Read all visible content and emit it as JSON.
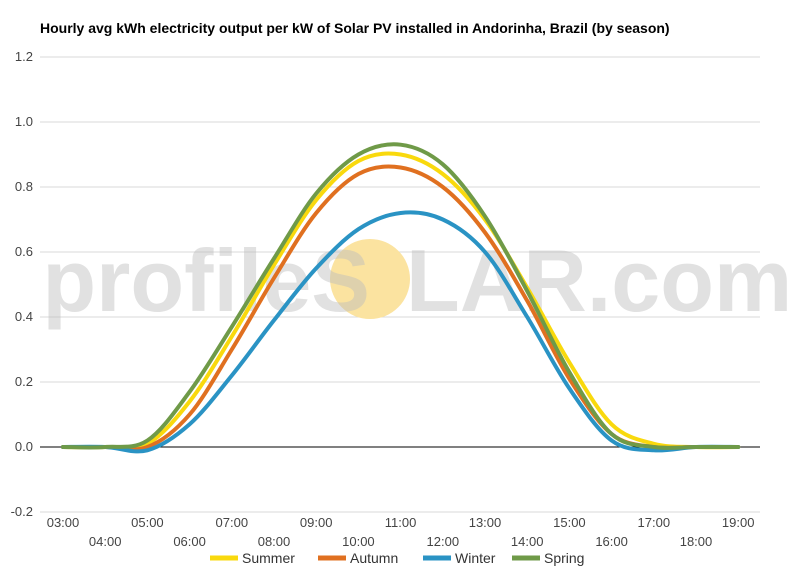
{
  "watermark": {
    "left": "profileS",
    "right": "LAR.com",
    "sun_color": "#fbe3a0"
  },
  "chart_data": {
    "type": "line",
    "title": "Hourly avg kWh electricity output per kW of Solar PV installed in Andorinha, Brazil (by season)",
    "xlabel": "",
    "ylabel": "",
    "x": [
      "03:00",
      "04:00",
      "05:00",
      "06:00",
      "07:00",
      "08:00",
      "09:00",
      "10:00",
      "11:00",
      "12:00",
      "13:00",
      "14:00",
      "15:00",
      "16:00",
      "17:00",
      "18:00",
      "19:00"
    ],
    "ylim": [
      -0.2,
      1.2
    ],
    "yticks": [
      -0.2,
      0.0,
      0.2,
      0.4,
      0.6,
      0.8,
      1.0,
      1.2
    ],
    "ytick_labels": [
      "-0.2",
      "0.0",
      "0.2",
      "0.4",
      "0.6",
      "0.8",
      "1.0",
      "1.2"
    ],
    "grid": true,
    "legend_position": "bottom",
    "series": [
      {
        "name": "Summer",
        "color": "#f9d90d",
        "values": [
          0.0,
          0.0,
          0.01,
          0.14,
          0.34,
          0.56,
          0.76,
          0.88,
          0.9,
          0.84,
          0.7,
          0.49,
          0.26,
          0.07,
          0.01,
          0.0,
          0.0
        ]
      },
      {
        "name": "Autumn",
        "color": "#e07020",
        "values": [
          0.0,
          0.0,
          0.0,
          0.1,
          0.3,
          0.52,
          0.72,
          0.84,
          0.86,
          0.8,
          0.66,
          0.45,
          0.21,
          0.04,
          0.0,
          0.0,
          0.0
        ]
      },
      {
        "name": "Winter",
        "color": "#2a93c4",
        "values": [
          0.0,
          0.0,
          -0.01,
          0.07,
          0.22,
          0.39,
          0.55,
          0.67,
          0.72,
          0.7,
          0.6,
          0.4,
          0.18,
          0.02,
          -0.01,
          0.0,
          0.0
        ]
      },
      {
        "name": "Spring",
        "color": "#6f9a48",
        "values": [
          0.0,
          0.0,
          0.02,
          0.17,
          0.37,
          0.58,
          0.78,
          0.9,
          0.93,
          0.87,
          0.71,
          0.48,
          0.23,
          0.04,
          0.0,
          0.0,
          0.0
        ]
      }
    ]
  }
}
